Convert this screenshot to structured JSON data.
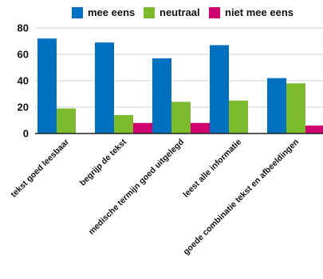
{
  "chart_data": {
    "type": "bar",
    "categories": [
      "tekst goed leesbaar",
      "begrijp de tekst",
      "medische termijn goed uitgelegd",
      "leest alle informatie",
      "goede combinatie tekst en afbeeldingen"
    ],
    "series": [
      {
        "name": "mee eens",
        "color": "#0070c0",
        "values": [
          72,
          69,
          57,
          67,
          42
        ]
      },
      {
        "name": "neutraal",
        "color": "#7cbc2c",
        "values": [
          19,
          14,
          24,
          25,
          38
        ]
      },
      {
        "name": "niet mee eens",
        "color": "#d0006f",
        "values": [
          0,
          8,
          8,
          0,
          6
        ]
      }
    ],
    "ylim": [
      0,
      80
    ],
    "yticks": [
      0,
      20,
      40,
      60,
      80
    ],
    "grid": true,
    "legend": "top-center",
    "title": "",
    "xlabel": "",
    "ylabel": ""
  }
}
